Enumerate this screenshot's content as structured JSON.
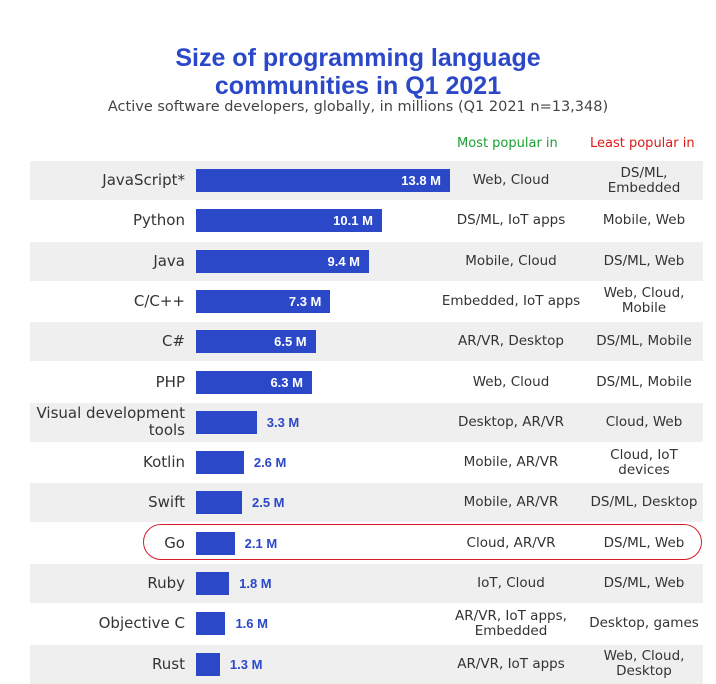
{
  "title_line1": "Size of programming language",
  "title_line2": "communities in Q1 2021",
  "subtitle": "Active software developers, globally, in millions (Q1 2021 n=13,348)",
  "col_most": "Most popular in",
  "col_least": "Least popular in",
  "colors": {
    "bar": "#2b48c9",
    "most_header": "#1aa032",
    "least_header": "#e01818",
    "highlight": "#d41f2a"
  },
  "highlighted_category": "Go",
  "chart_data": {
    "type": "bar",
    "orientation": "horizontal",
    "title": "Size of programming language communities in Q1 2021",
    "subtitle": "Active software developers, globally, in millions (Q1 2021 n=13,348)",
    "categories": [
      "JavaScript*",
      "Python",
      "Java",
      "C/C++",
      "C#",
      "PHP",
      "Visual development tools",
      "Kotlin",
      "Swift",
      "Go",
      "Ruby",
      "Objective C",
      "Rust"
    ],
    "values": [
      13.8,
      10.1,
      9.4,
      7.3,
      6.5,
      6.3,
      3.3,
      2.6,
      2.5,
      2.1,
      1.8,
      1.6,
      1.3
    ],
    "value_labels": [
      "13.8 M",
      "10.1 M",
      "9.4 M",
      "7.3 M",
      "6.5 M",
      "6.3 M",
      "3.3 M",
      "2.6 M",
      "2.5 M",
      "2.1 M",
      "1.8 M",
      "1.6 M",
      "1.3 M"
    ],
    "most_popular_in": [
      "Web, Cloud",
      "DS/ML, IoT apps",
      "Mobile, Cloud",
      "Embedded, IoT apps",
      "AR/VR, Desktop",
      "Web, Cloud",
      "Desktop, AR/VR",
      "Mobile, AR/VR",
      "Mobile, AR/VR",
      "Cloud, AR/VR",
      "IoT, Cloud",
      "AR/VR, IoT apps, Embedded",
      "AR/VR, IoT apps"
    ],
    "least_popular_in": [
      "DS/ML, Embedded",
      "Mobile, Web",
      "DS/ML, Web",
      "Web, Cloud, Mobile",
      "DS/ML, Mobile",
      "DS/ML, Mobile",
      "Cloud, Web",
      "Cloud, IoT devices",
      "DS/ML, Desktop",
      "DS/ML, Web",
      "DS/ML, Web",
      "Desktop, games",
      "Web, Cloud, Desktop"
    ],
    "xlim": [
      0,
      13.8
    ],
    "grid": false,
    "legend": "none"
  }
}
